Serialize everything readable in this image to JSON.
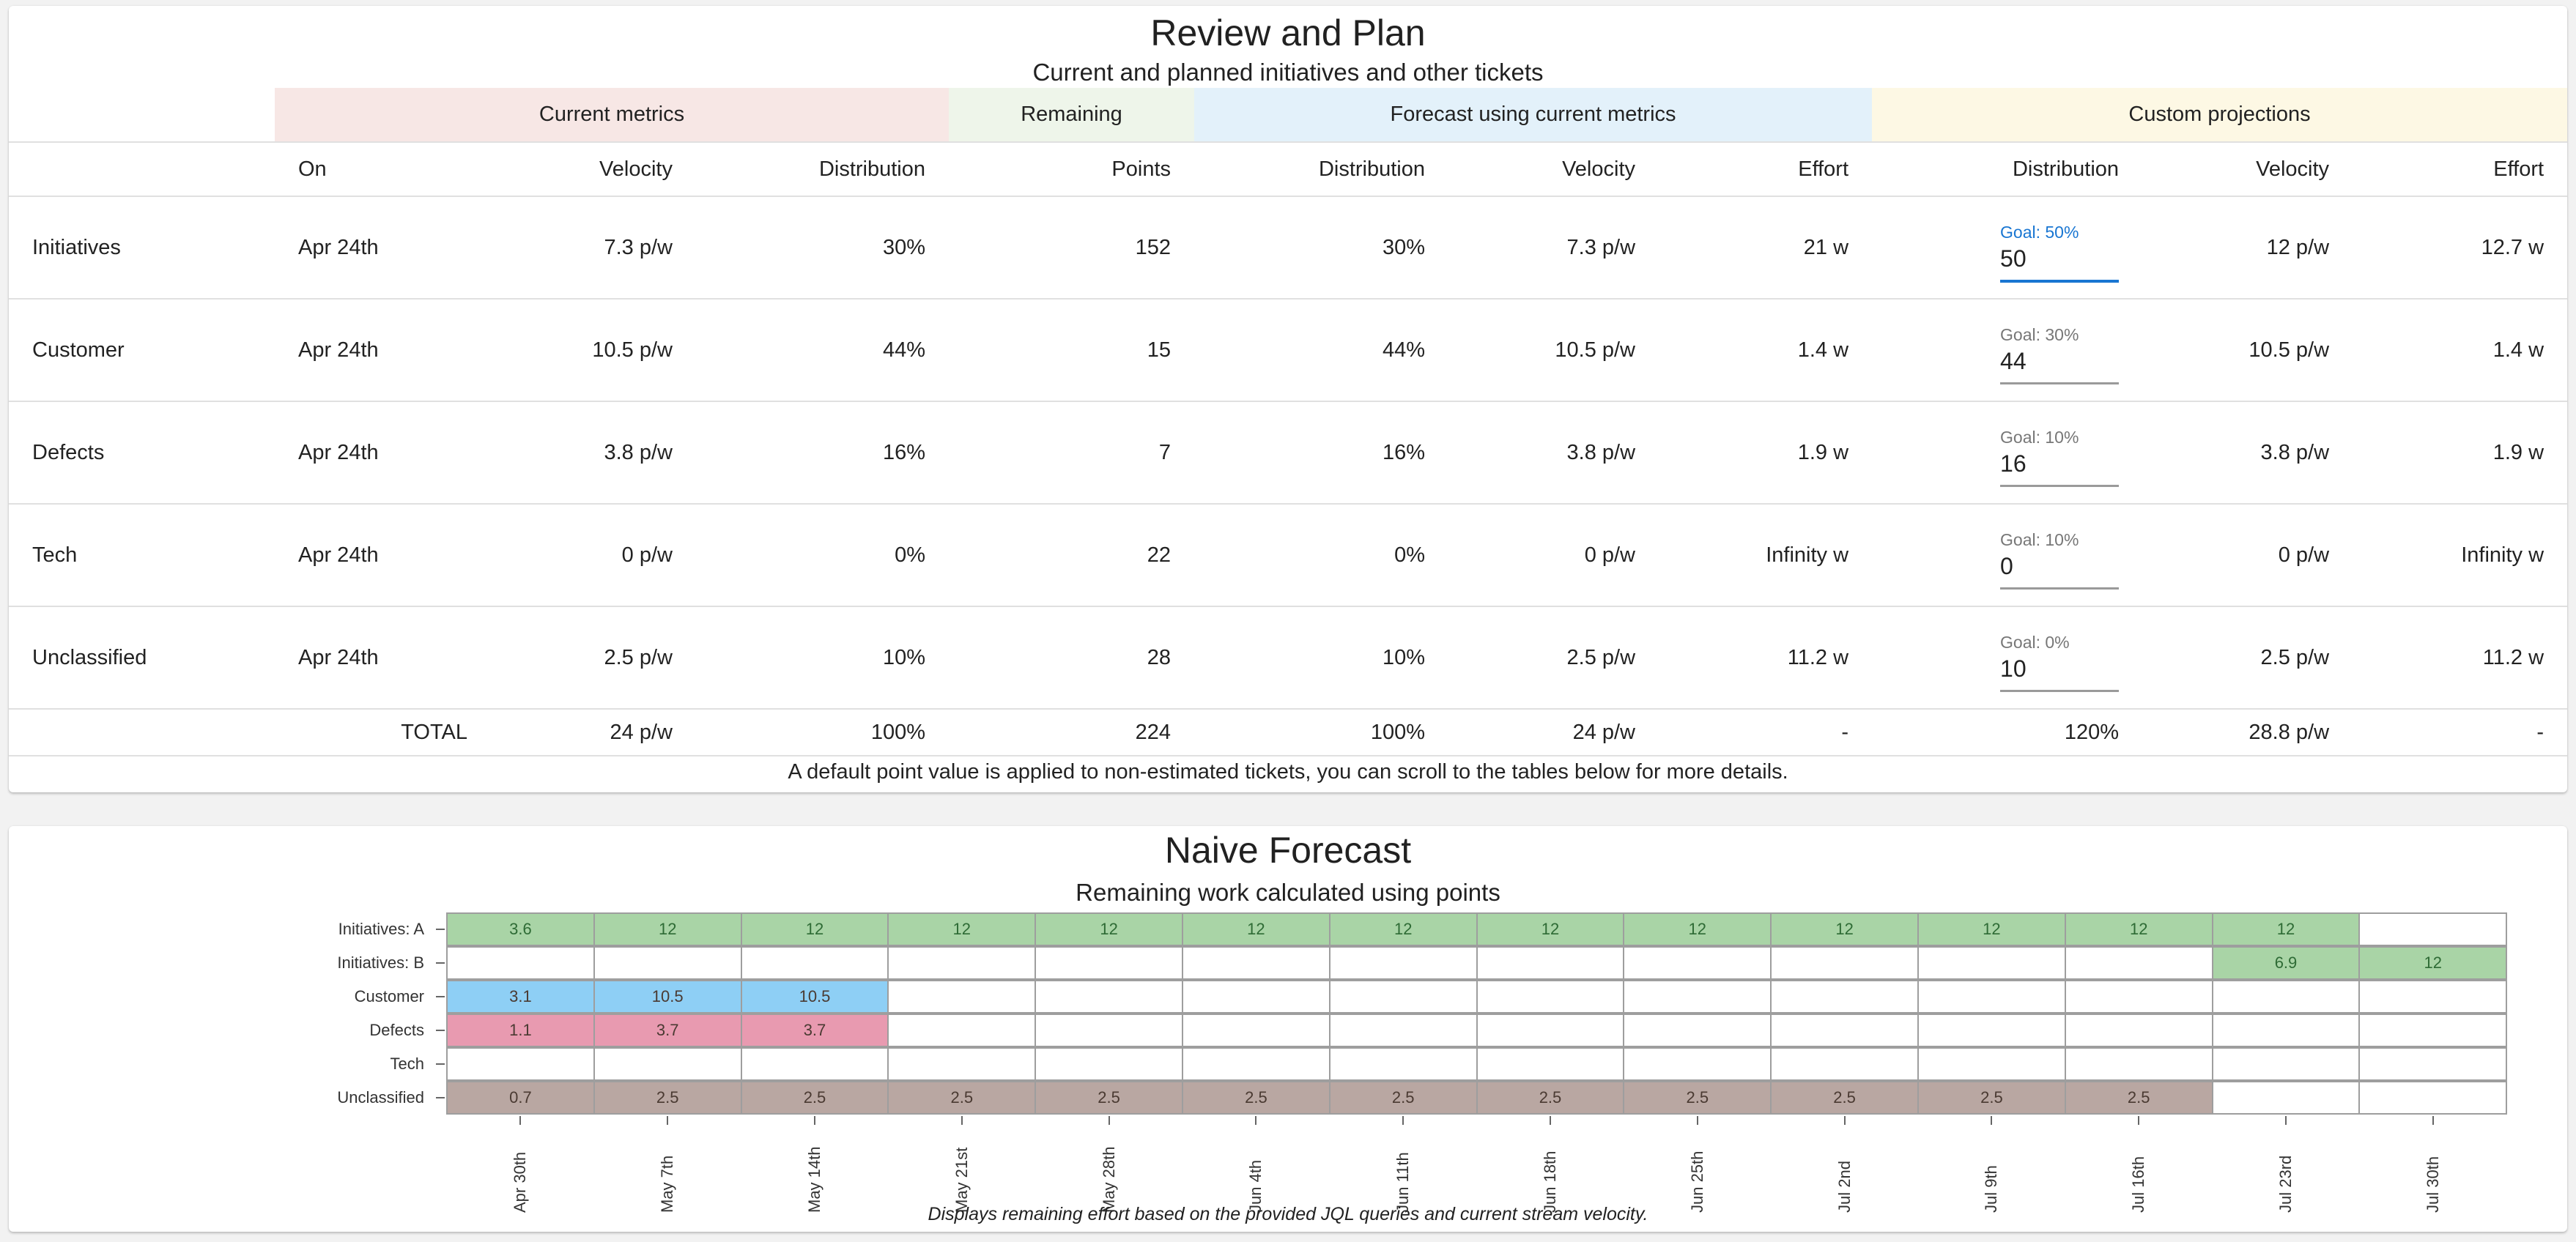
{
  "review": {
    "title": "Review and Plan",
    "subtitle": "Current and planned initiatives and other tickets",
    "groups": {
      "current": "Current metrics",
      "remaining": "Remaining",
      "forecast": "Forecast using current metrics",
      "custom": "Custom projections"
    },
    "headers": {
      "on": "On",
      "velocity": "Velocity",
      "distribution": "Distribution",
      "points": "Points",
      "f_distribution": "Distribution",
      "f_velocity": "Velocity",
      "f_effort": "Effort",
      "c_distribution": "Distribution",
      "c_velocity": "Velocity",
      "c_effort": "Effort"
    },
    "rows": [
      {
        "name": "Initiatives",
        "on": "Apr 24th",
        "velocity": "7.3 p/w",
        "distribution": "30%",
        "points": "152",
        "f_distribution": "30%",
        "f_velocity": "7.3 p/w",
        "f_effort": "21 w",
        "goal_label": "Goal: 50%",
        "goal_value": "50",
        "c_velocity": "12 p/w",
        "c_effort": "12.7 w"
      },
      {
        "name": "Customer",
        "on": "Apr 24th",
        "velocity": "10.5 p/w",
        "distribution": "44%",
        "points": "15",
        "f_distribution": "44%",
        "f_velocity": "10.5 p/w",
        "f_effort": "1.4 w",
        "goal_label": "Goal: 30%",
        "goal_value": "44",
        "c_velocity": "10.5 p/w",
        "c_effort": "1.4 w"
      },
      {
        "name": "Defects",
        "on": "Apr 24th",
        "velocity": "3.8 p/w",
        "distribution": "16%",
        "points": "7",
        "f_distribution": "16%",
        "f_velocity": "3.8 p/w",
        "f_effort": "1.9 w",
        "goal_label": "Goal: 10%",
        "goal_value": "16",
        "c_velocity": "3.8 p/w",
        "c_effort": "1.9 w"
      },
      {
        "name": "Tech",
        "on": "Apr 24th",
        "velocity": "0 p/w",
        "distribution": "0%",
        "points": "22",
        "f_distribution": "0%",
        "f_velocity": "0 p/w",
        "f_effort": "Infinity w",
        "goal_label": "Goal: 10%",
        "goal_value": "0",
        "c_velocity": "0 p/w",
        "c_effort": "Infinity w"
      },
      {
        "name": "Unclassified",
        "on": "Apr 24th",
        "velocity": "2.5 p/w",
        "distribution": "10%",
        "points": "28",
        "f_distribution": "10%",
        "f_velocity": "2.5 p/w",
        "f_effort": "11.2 w",
        "goal_label": "Goal: 0%",
        "goal_value": "10",
        "c_velocity": "2.5 p/w",
        "c_effort": "11.2 w"
      }
    ],
    "total": {
      "label": "TOTAL",
      "velocity": "24 p/w",
      "distribution": "100%",
      "points": "224",
      "f_distribution": "100%",
      "f_velocity": "24 p/w",
      "f_effort": "-",
      "c_distribution": "120%",
      "c_velocity": "28.8 p/w",
      "c_effort": "-"
    },
    "note": "A default point value is applied to non-estimated tickets, you can scroll to the tables below for more details."
  },
  "forecast": {
    "title": "Naive Forecast",
    "subtitle": "Remaining work calculated using points",
    "caption": "Displays remaining effort based on the provided JQL queries and current stream velocity.",
    "colors": {
      "initiatives": "#a9d4a6",
      "customer": "#8ecff5",
      "defects": "#e89ab0",
      "unclassified": "#b9a7a2",
      "empty": "#ffffff",
      "grid": "#9e9e9e"
    },
    "chart_data": {
      "type": "heatmap",
      "title": "Naive Forecast",
      "subtitle": "Remaining work calculated using points",
      "x": [
        "Apr 30th",
        "May 7th",
        "May 14th",
        "May 21st",
        "May 28th",
        "Jun 4th",
        "Jun 11th",
        "Jun 18th",
        "Jun 25th",
        "Jul 2nd",
        "Jul 9th",
        "Jul 16th",
        "Jul 23rd",
        "Jul 30th"
      ],
      "rows": [
        {
          "name": "Initiatives: A",
          "color_key": "initiatives",
          "values": [
            "3.6",
            "12",
            "12",
            "12",
            "12",
            "12",
            "12",
            "12",
            "12",
            "12",
            "12",
            "12",
            "12",
            null
          ]
        },
        {
          "name": "Initiatives: B",
          "color_key": "initiatives",
          "values": [
            null,
            null,
            null,
            null,
            null,
            null,
            null,
            null,
            null,
            null,
            null,
            null,
            "6.9",
            "12"
          ]
        },
        {
          "name": "Customer",
          "color_key": "customer",
          "values": [
            "3.1",
            "10.5",
            "10.5",
            null,
            null,
            null,
            null,
            null,
            null,
            null,
            null,
            null,
            null,
            null
          ]
        },
        {
          "name": "Defects",
          "color_key": "defects",
          "values": [
            "1.1",
            "3.7",
            "3.7",
            null,
            null,
            null,
            null,
            null,
            null,
            null,
            null,
            null,
            null,
            null
          ]
        },
        {
          "name": "Tech",
          "color_key": "tech",
          "values": [
            null,
            null,
            null,
            null,
            null,
            null,
            null,
            null,
            null,
            null,
            null,
            null,
            null,
            null
          ]
        },
        {
          "name": "Unclassified",
          "color_key": "unclassified",
          "values": [
            "0.7",
            "2.5",
            "2.5",
            "2.5",
            "2.5",
            "2.5",
            "2.5",
            "2.5",
            "2.5",
            "2.5",
            "2.5",
            "2.5",
            null,
            null
          ]
        }
      ]
    }
  }
}
